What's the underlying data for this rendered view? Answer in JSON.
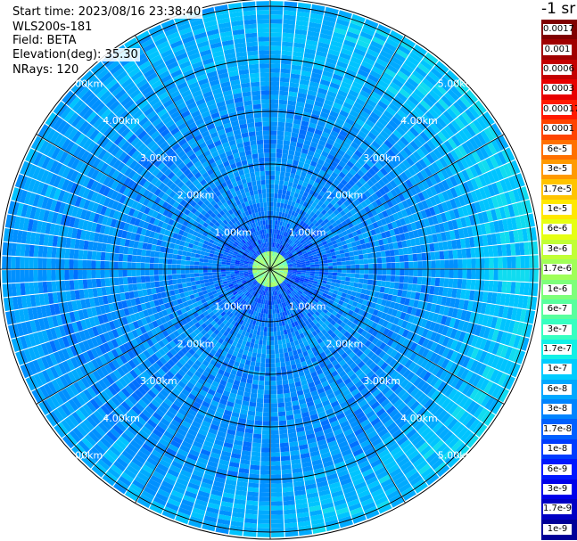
{
  "header": {
    "start_time": "Start time: 2023/08/16 23:38:40",
    "instrument": "WLS200s-181",
    "field": "Field: BETA",
    "elevation": "Elevation(deg): 35.30",
    "nrays": "NRays: 120"
  },
  "colorbar": {
    "unit": "-1 sr",
    "labels": [
      "0.0017",
      "0.001",
      "0.0006",
      "0.0003",
      "0.00017",
      "0.0001",
      "6e-5",
      "3e-5",
      "1.7e-5",
      "1e-5",
      "6e-6",
      "3e-6",
      "1.7e-6",
      "1e-6",
      "6e-7",
      "3e-7",
      "1.7e-7",
      "1e-7",
      "6e-8",
      "3e-8",
      "1.7e-8",
      "1e-8",
      "6e-9",
      "3e-9",
      "1.7e-9",
      "1e-9"
    ],
    "colors": [
      "#800000",
      "#a00000",
      "#c40000",
      "#e80000",
      "#ff1a00",
      "#ff4400",
      "#ff7000",
      "#ff9a00",
      "#ffc400",
      "#ffe800",
      "#e6ff12",
      "#c1ff36",
      "#a0ff58",
      "#7dff7a",
      "#58ff9e",
      "#36ffc1",
      "#12f0e6",
      "#00ccff",
      "#00a8ff",
      "#0084ff",
      "#0060ff",
      "#003cff",
      "#0018ff",
      "#0000ea",
      "#0000c4",
      "#000098"
    ]
  },
  "chart_data": {
    "type": "heatmap",
    "projection": "polar (PPI scan)",
    "field": "BETA",
    "elevation_deg": 35.3,
    "n_rays": 120,
    "range_rings_km": [
      1,
      2,
      3,
      4,
      5
    ],
    "ring_labels": [
      "1.00km",
      "2.00km",
      "3.00km",
      "4.00km",
      "5.00km"
    ],
    "max_range_km": 5.1,
    "spokes_deg": [
      0,
      30,
      60,
      90,
      120,
      150,
      180,
      210,
      240,
      270,
      300,
      330
    ],
    "dominant_values": "mostly 1e-7 to 1.7e-7 sr-1 (blue), with bands near 3e-7 to 6e-7 (cyan) at 3-5 km",
    "colorbar_scale": "log",
    "colorbar_range": [
      1e-09,
      0.0017
    ]
  }
}
